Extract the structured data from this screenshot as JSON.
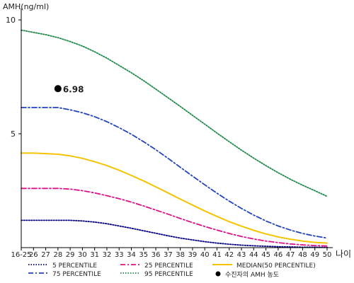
{
  "chart_data": {
    "type": "line",
    "ylabel": "AMH(ng/ml)",
    "xlabel": "나이",
    "categories": [
      "16-25",
      "26",
      "27",
      "28",
      "29",
      "30",
      "31",
      "32",
      "33",
      "34",
      "35",
      "36",
      "37",
      "38",
      "39",
      "40",
      "41",
      "42",
      "43",
      "44",
      "45",
      "46",
      "47",
      "48",
      "49",
      "50"
    ],
    "yticks": [
      "10",
      "5"
    ],
    "ylim": [
      0,
      10.5
    ],
    "series": [
      {
        "name": "5 PERCENTILE",
        "color": "#000080",
        "dash": "dotted",
        "values": [
          1.2,
          1.2,
          1.2,
          1.2,
          1.2,
          1.17,
          1.12,
          1.05,
          0.95,
          0.85,
          0.74,
          0.63,
          0.52,
          0.42,
          0.34,
          0.26,
          0.2,
          0.15,
          0.11,
          0.08,
          0.06,
          0.04,
          0.03,
          0.02,
          0.02,
          0.01
        ]
      },
      {
        "name": "25 PERCENTILE",
        "color": "#e0108a",
        "dash": "dashdot",
        "values": [
          2.6,
          2.6,
          2.6,
          2.6,
          2.57,
          2.5,
          2.4,
          2.28,
          2.15,
          2.0,
          1.83,
          1.65,
          1.47,
          1.28,
          1.1,
          0.93,
          0.77,
          0.62,
          0.49,
          0.38,
          0.29,
          0.22,
          0.16,
          0.12,
          0.09,
          0.07
        ]
      },
      {
        "name": "MEDIAN(50 PERCENTILE)",
        "color": "#f5c400",
        "dash": "solid",
        "values": [
          4.15,
          4.15,
          4.13,
          4.1,
          4.03,
          3.92,
          3.77,
          3.6,
          3.4,
          3.17,
          2.93,
          2.67,
          2.4,
          2.13,
          1.87,
          1.61,
          1.37,
          1.14,
          0.94,
          0.76,
          0.6,
          0.47,
          0.37,
          0.29,
          0.23,
          0.2
        ]
      },
      {
        "name": "75 PERCENTILE",
        "color": "#2244bb",
        "dash": "dashdot",
        "values": [
          6.15,
          6.15,
          6.15,
          6.15,
          6.05,
          5.92,
          5.75,
          5.53,
          5.27,
          4.98,
          4.65,
          4.3,
          3.92,
          3.53,
          3.14,
          2.76,
          2.39,
          2.04,
          1.72,
          1.43,
          1.17,
          0.95,
          0.77,
          0.62,
          0.51,
          0.42
        ]
      },
      {
        "name": "95 PERCENTILE",
        "color": "#1e8a4a",
        "dash": "dotted",
        "values": [
          9.55,
          9.45,
          9.35,
          9.22,
          9.05,
          8.85,
          8.6,
          8.32,
          8.0,
          7.68,
          7.33,
          6.96,
          6.58,
          6.2,
          5.81,
          5.42,
          5.03,
          4.65,
          4.28,
          3.93,
          3.6,
          3.29,
          3.0,
          2.74,
          2.5,
          2.25
        ]
      }
    ],
    "point": {
      "category": "28",
      "value": 6.98,
      "label": "6.98",
      "legend": "수진자의 AMH 농도",
      "color": "#000000"
    },
    "legend_items": [
      {
        "name": "5 PERCENTILE",
        "color": "#000080",
        "dash": "dotted"
      },
      {
        "name": "25 PERCENTILE",
        "color": "#e0108a",
        "dash": "dashdot"
      },
      {
        "name": "MEDIAN(50 PERCENTILE)",
        "color": "#f5c400",
        "dash": "solid"
      },
      {
        "name": "75 PERCENTILE",
        "color": "#2244bb",
        "dash": "dashdot"
      },
      {
        "name": "95 PERCENTILE",
        "color": "#1e8a4a",
        "dash": "dotted"
      }
    ]
  }
}
